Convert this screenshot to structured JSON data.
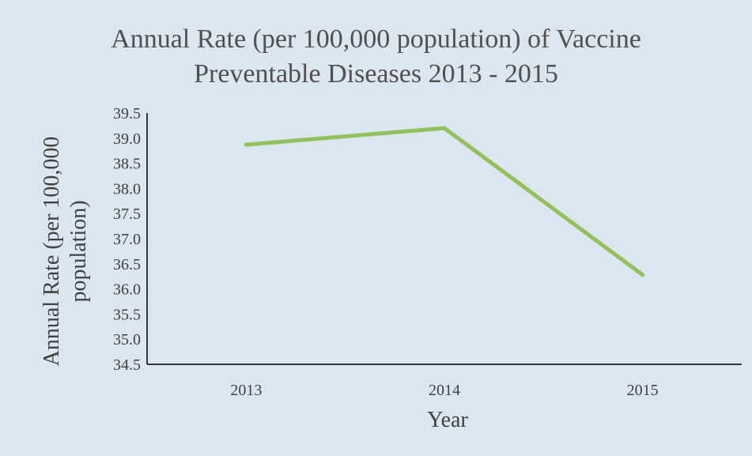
{
  "chart_data": {
    "type": "line",
    "title_lines": [
      "Annual Rate (per 100,000 population) of Vaccine",
      "Preventable Diseases 2013 - 2015"
    ],
    "xlabel": "Year",
    "ylabel_lines": [
      "Annual Rate (per 100,000",
      "population)"
    ],
    "categories": [
      "2013",
      "2014",
      "2015"
    ],
    "series": [
      {
        "values": [
          38.87,
          39.2,
          36.28
        ],
        "color": "#92c05a"
      }
    ],
    "ylim": [
      34.5,
      39.5
    ],
    "yticks": [
      "39.5",
      "39.0",
      "38.5",
      "38.0",
      "37.5",
      "37.0",
      "36.5",
      "36.0",
      "35.5",
      "35.0",
      "34.5"
    ],
    "grid": false,
    "legend": "none",
    "colors": {
      "background": "#dce6f1",
      "axis": "#000000",
      "text": "#404040"
    }
  }
}
